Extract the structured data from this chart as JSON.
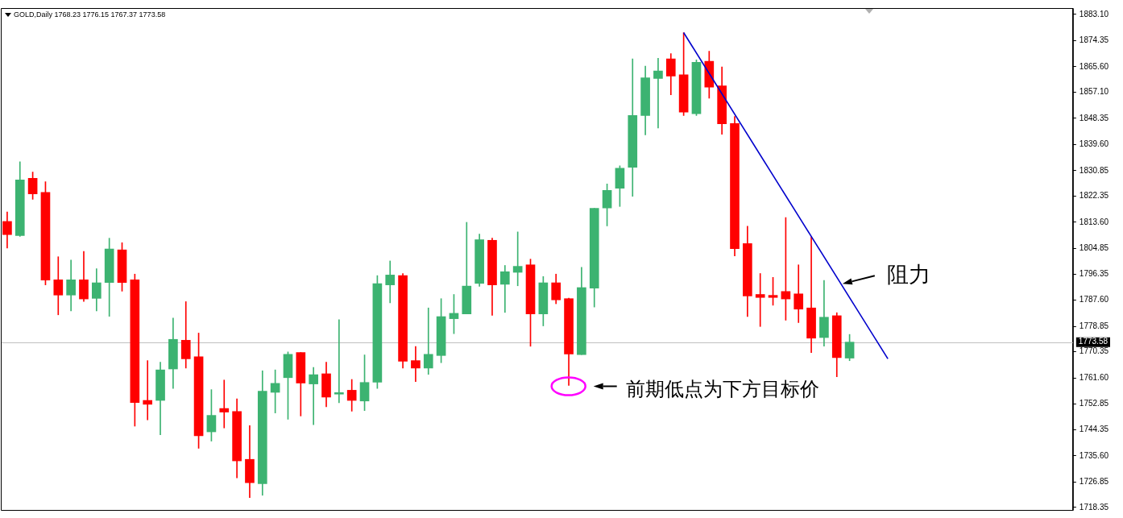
{
  "chart_data": {
    "type": "candlestick",
    "title": "GOLD,Daily 1768.23 1776.15 1767.37 1773.58",
    "categories": [
      null,
      null,
      null,
      null,
      null,
      null,
      null,
      null,
      null,
      null,
      null,
      null,
      null,
      null,
      null,
      null,
      null,
      null,
      null,
      null,
      null,
      null,
      null,
      null,
      null,
      null,
      null,
      null,
      null,
      null,
      null,
      null,
      null,
      null,
      null,
      null,
      null,
      null,
      null,
      null,
      null,
      null,
      null,
      null,
      null,
      null,
      null,
      null,
      null,
      null,
      null,
      null,
      null,
      null,
      null,
      null,
      null,
      null,
      null,
      null,
      null,
      null,
      null,
      null,
      null,
      null,
      null,
      null,
      null,
      null,
      null,
      null,
      null,
      null,
      null,
      null,
      null,
      null,
      null,
      null,
      null,
      null,
      null,
      null
    ],
    "ohlc": [
      [
        1813.9,
        1817.1,
        1805.0,
        1809.5
      ],
      [
        1809.2,
        1833.8,
        1808.9,
        1827.8
      ],
      [
        1828.3,
        1830.4,
        1821.3,
        1823.1
      ],
      [
        1823.6,
        1827.2,
        1792.7,
        1794.3
      ],
      [
        1794.4,
        1802.1,
        1782.7,
        1789.3
      ],
      [
        1789.3,
        1801.0,
        1784.0,
        1794.4
      ],
      [
        1794.4,
        1803.9,
        1787.2,
        1788.0
      ],
      [
        1788.2,
        1798.1,
        1784.0,
        1793.4
      ],
      [
        1793.5,
        1808.3,
        1782.2,
        1804.7
      ],
      [
        1804.4,
        1806.8,
        1790.6,
        1793.5
      ],
      [
        1794.4,
        1796.3,
        1745.5,
        1753.4
      ],
      [
        1754.1,
        1767.4,
        1747.6,
        1752.8
      ],
      [
        1754.1,
        1766.9,
        1742.6,
        1764.3
      ],
      [
        1764.6,
        1781.6,
        1758.1,
        1774.5
      ],
      [
        1774.2,
        1787.1,
        1764.9,
        1768.0
      ],
      [
        1768.7,
        1776.6,
        1738.1,
        1742.3
      ],
      [
        1743.6,
        1757.7,
        1740.5,
        1749.1
      ],
      [
        1751.4,
        1760.9,
        1744.9,
        1750.2
      ],
      [
        1750.4,
        1754.6,
        1728.2,
        1733.9
      ],
      [
        1734.4,
        1745.7,
        1721.6,
        1726.6
      ],
      [
        1726.3,
        1764.0,
        1722.4,
        1757.2
      ],
      [
        1756.8,
        1764.3,
        1749.9,
        1759.8
      ],
      [
        1761.7,
        1770.3,
        1747.8,
        1769.5
      ],
      [
        1770.1,
        1770.1,
        1748.9,
        1759.9
      ],
      [
        1759.6,
        1765.1,
        1746.0,
        1762.7
      ],
      [
        1763.0,
        1766.9,
        1752.0,
        1755.2
      ],
      [
        1756.2,
        1781.1,
        1753.3,
        1756.7
      ],
      [
        1757.5,
        1761.1,
        1750.5,
        1754.1
      ],
      [
        1753.9,
        1769.3,
        1750.7,
        1760.1
      ],
      [
        1760.2,
        1795.8,
        1758.1,
        1793.1
      ],
      [
        1792.7,
        1800.7,
        1786.7,
        1796.0
      ],
      [
        1795.8,
        1796.5,
        1764.9,
        1767.2
      ],
      [
        1767.4,
        1772.1,
        1760.4,
        1764.9
      ],
      [
        1764.9,
        1785.0,
        1762.8,
        1769.5
      ],
      [
        1769.1,
        1788.1,
        1766.7,
        1782.1
      ],
      [
        1781.4,
        1789.5,
        1776.4,
        1783.2
      ],
      [
        1783.0,
        1813.6,
        1783.0,
        1792.3
      ],
      [
        1793.2,
        1809.7,
        1792.2,
        1807.8
      ],
      [
        1807.6,
        1808.3,
        1782.5,
        1792.7
      ],
      [
        1792.9,
        1799.2,
        1783.5,
        1797.1
      ],
      [
        1796.9,
        1810.4,
        1792.4,
        1798.9
      ],
      [
        1799.4,
        1801.3,
        1772.2,
        1783.0
      ],
      [
        1783.0,
        1795.5,
        1779.0,
        1793.4
      ],
      [
        1793.4,
        1796.3,
        1786.4,
        1787.7
      ],
      [
        1788.1,
        1788.3,
        1759.1,
        1769.6
      ],
      [
        1769.4,
        1798.6,
        1769.4,
        1791.8
      ],
      [
        1791.6,
        1818.3,
        1785.3,
        1818.3
      ],
      [
        1818.4,
        1826.4,
        1812.4,
        1824.3
      ],
      [
        1825.0,
        1832.5,
        1818.9,
        1831.7
      ],
      [
        1832.0,
        1868.2,
        1822.3,
        1849.3
      ],
      [
        1849.3,
        1865.8,
        1842.8,
        1861.9
      ],
      [
        1861.7,
        1868.4,
        1845.1,
        1864.2
      ],
      [
        1868.2,
        1870.0,
        1856.2,
        1862.5
      ],
      [
        1862.9,
        1877.0,
        1849.3,
        1850.4
      ],
      [
        1849.9,
        1867.9,
        1849.3,
        1867.1
      ],
      [
        1867.4,
        1870.8,
        1855.1,
        1858.8
      ],
      [
        1859.2,
        1865.5,
        1843.0,
        1846.5
      ],
      [
        1846.6,
        1849.0,
        1802.4,
        1804.8
      ],
      [
        1806.5,
        1812.3,
        1782.1,
        1789.0
      ],
      [
        1789.5,
        1796.5,
        1778.8,
        1788.5
      ],
      [
        1789.2,
        1795.2,
        1785.9,
        1788.5
      ],
      [
        1790.5,
        1815.2,
        1780.9,
        1788.0
      ],
      [
        1789.7,
        1799.4,
        1780.1,
        1784.6
      ],
      [
        1785.0,
        1808.7,
        1770.1,
        1774.9
      ],
      [
        1775.1,
        1794.2,
        1772.2,
        1781.9
      ],
      [
        1782.4,
        1783.4,
        1762.0,
        1768.4
      ],
      [
        1768.23,
        1776.15,
        1767.37,
        1773.58
      ],
      null,
      null,
      null,
      null,
      null,
      null,
      null,
      null,
      null,
      null,
      null,
      null,
      null,
      null,
      null,
      null,
      null
    ],
    "colors": [
      "#ff0000",
      "#3cb371",
      "#ff0000",
      "#ff0000",
      "#ff0000",
      "#3cb371",
      "#ff0000",
      "#3cb371",
      "#3cb371",
      "#ff0000",
      "#ff0000",
      "#ff0000",
      "#3cb371",
      "#3cb371",
      "#ff0000",
      "#ff0000",
      "#3cb371",
      "#ff0000",
      "#ff0000",
      "#ff0000",
      "#3cb371",
      "#3cb371",
      "#3cb371",
      "#ff0000",
      "#3cb371",
      "#ff0000",
      "#3cb371",
      "#ff0000",
      "#3cb371",
      "#3cb371",
      "#3cb371",
      "#ff0000",
      "#ff0000",
      "#3cb371",
      "#3cb371",
      "#3cb371",
      "#3cb371",
      "#3cb371",
      "#ff0000",
      "#3cb371",
      "#3cb371",
      "#ff0000",
      "#3cb371",
      "#ff0000",
      "#ff0000",
      "#3cb371",
      "#3cb371",
      "#3cb371",
      "#3cb371",
      "#3cb371",
      "#3cb371",
      "#3cb371",
      "#ff0000",
      "#ff0000",
      "#3cb371",
      "#ff0000",
      "#ff0000",
      "#ff0000",
      "#ff0000",
      "#ff0000",
      "#ff0000",
      "#ff0000",
      "#ff0000",
      "#ff0000",
      "#3cb371",
      "#ff0000",
      "#3cb371",
      null,
      null,
      null,
      null,
      null,
      null,
      null,
      null,
      null,
      null,
      null,
      null,
      null,
      null,
      null,
      null,
      null
    ],
    "series": [
      {
        "type": "line",
        "color": "#0000cc",
        "values": [
          null,
          null,
          null,
          null,
          null,
          null,
          null,
          null,
          null,
          null,
          null,
          null,
          null,
          null,
          null,
          null,
          null,
          null,
          null,
          null,
          null,
          null,
          null,
          null,
          null,
          null,
          null,
          null,
          null,
          null,
          null,
          null,
          null,
          null,
          null,
          null,
          null,
          null,
          null,
          null,
          null,
          null,
          null,
          null,
          null,
          null,
          null,
          null,
          null,
          null,
          null,
          null,
          null,
          1877.0,
          null,
          null,
          null,
          null,
          null,
          null,
          null,
          null,
          null,
          null,
          null,
          null,
          null,
          null,
          null,
          1768.0,
          null,
          null,
          null,
          null,
          null,
          null,
          null,
          null,
          null,
          null,
          null,
          null,
          null,
          null
        ]
      }
    ],
    "ylim": [
      1717.5,
      1885.2
    ],
    "yticks": [
      {
        "value": 1718.35,
        "label": "1718.35"
      },
      {
        "value": 1726.85,
        "label": "1726.85"
      },
      {
        "value": 1735.6,
        "label": "1735.60"
      },
      {
        "value": 1744.35,
        "label": "1744.35"
      },
      {
        "value": 1752.85,
        "label": "1752.85"
      },
      {
        "value": 1761.6,
        "label": "1761.60"
      },
      {
        "value": 1770.35,
        "label": "1770.35"
      },
      {
        "value": 1778.85,
        "label": "1778.85"
      },
      {
        "value": 1787.6,
        "label": "1787.60"
      },
      {
        "value": 1796.35,
        "label": "1796.35"
      },
      {
        "value": 1804.85,
        "label": "1804.85"
      },
      {
        "value": 1813.6,
        "label": "1813.60"
      },
      {
        "value": 1822.35,
        "label": "1822.35"
      },
      {
        "value": 1830.85,
        "label": "1830.85"
      },
      {
        "value": 1839.6,
        "label": "1839.60"
      },
      {
        "value": 1848.35,
        "label": "1848.35"
      },
      {
        "value": 1857.1,
        "label": "1857.10"
      },
      {
        "value": 1865.6,
        "label": "1865.60"
      },
      {
        "value": 1874.35,
        "label": "1874.35"
      },
      {
        "value": 1883.1,
        "label": "1883.10"
      }
    ],
    "ref_lines": [
      {
        "axis": "y",
        "value": 1773.58,
        "label": "1773.58",
        "color": "#c0c0c0"
      }
    ],
    "annotations": [
      "阻力",
      "前期低点为下方目标价"
    ],
    "grid": false,
    "legend": false
  }
}
